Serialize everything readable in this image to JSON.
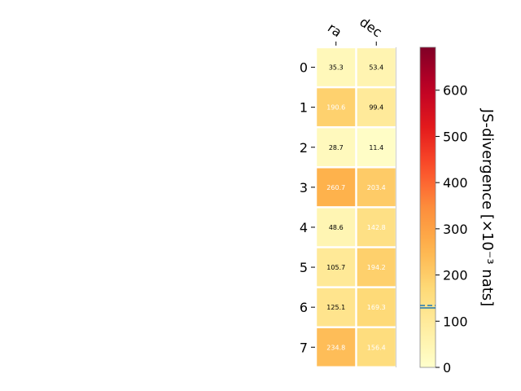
{
  "chart_data": {
    "type": "heatmap",
    "columns": [
      "ra",
      "dec"
    ],
    "rows": [
      "0",
      "1",
      "2",
      "3",
      "4",
      "5",
      "6",
      "7"
    ],
    "values": [
      [
        35.3,
        53.4
      ],
      [
        190.6,
        99.4
      ],
      [
        28.7,
        11.4
      ],
      [
        260.7,
        203.4
      ],
      [
        48.6,
        142.8
      ],
      [
        105.7,
        194.2
      ],
      [
        125.1,
        169.3
      ],
      [
        234.8,
        156.4
      ]
    ],
    "colorbar": {
      "label": "JS-divergence [×10⁻³ nats]",
      "range": [
        0,
        693
      ],
      "ticks": [
        0,
        100,
        200,
        300,
        400,
        500,
        600
      ],
      "marker_value": 134,
      "marker_color": "#1f77b4",
      "colormap": "YlOrRd"
    },
    "text_color_threshold": 130,
    "text_color_light": "#ffffff",
    "text_color_dark": "#000000"
  }
}
